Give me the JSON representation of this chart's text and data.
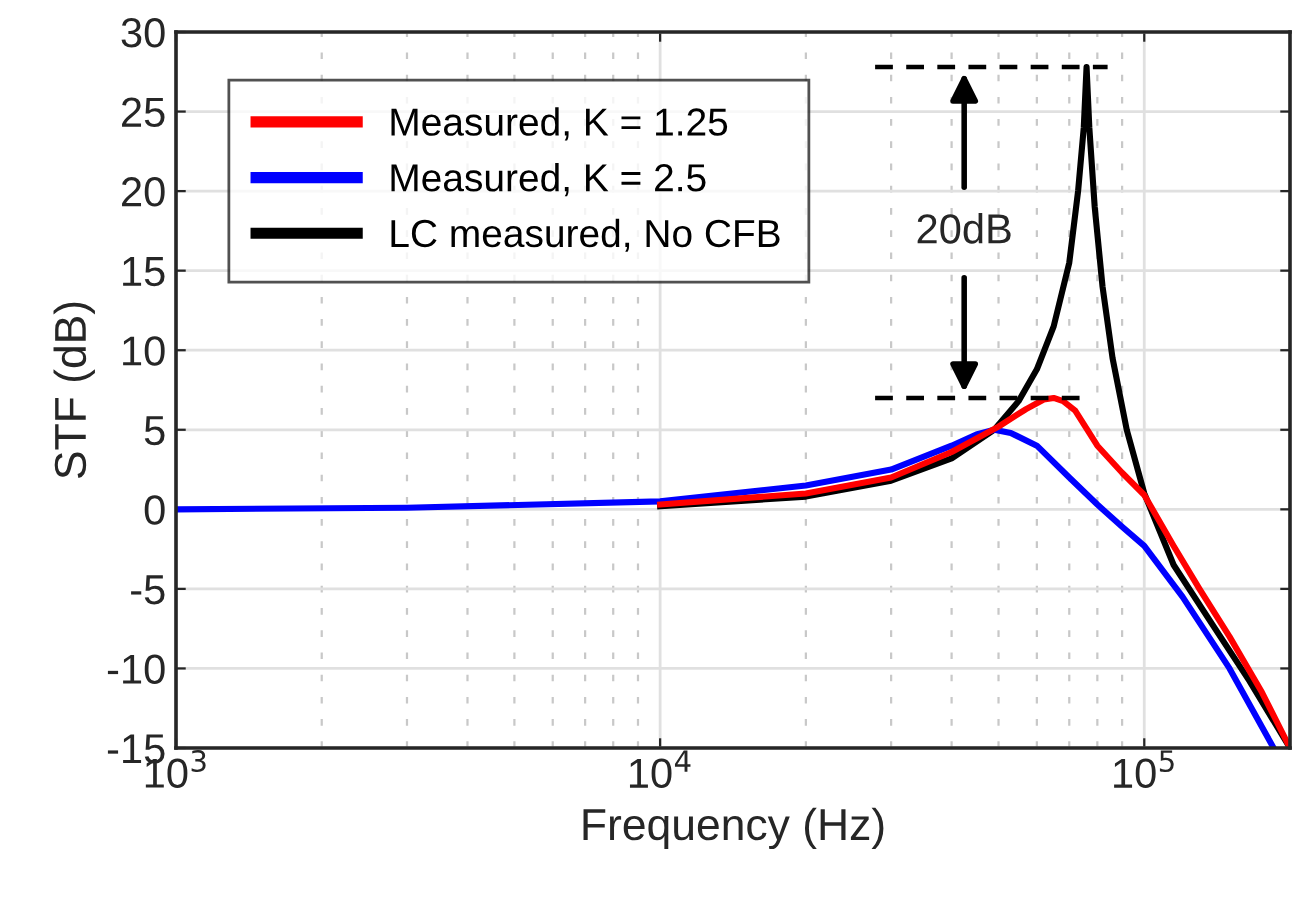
{
  "chart_data": {
    "type": "line",
    "xlabel": "Frequency (Hz)",
    "ylabel": "STF (dB)",
    "log": "x",
    "xlim": [
      1000,
      200000
    ],
    "ylim": [
      -15,
      30
    ],
    "xticks": [
      {
        "value": 1000,
        "label": "10$^{3}$"
      },
      {
        "value": 10000,
        "label": "10$^{4}$"
      },
      {
        "value": 100000,
        "label": "10$^{5}$"
      }
    ],
    "yticks": [
      -15,
      -10,
      -5,
      0,
      5,
      10,
      15,
      20,
      25,
      30
    ],
    "grid": true,
    "legend": "top left",
    "line_style": "solid",
    "marker": "none",
    "series": [
      {
        "name": "Measured, K = 1.25",
        "color": "#ff0000",
        "x": [
          10000,
          20000,
          30000,
          40000,
          50000,
          57000,
          62000,
          65000,
          68000,
          72000,
          80000,
          90000,
          100000,
          115000,
          130000,
          150000,
          175000,
          200000
        ],
        "values": [
          0.3,
          1,
          2,
          3.6,
          5.2,
          6.3,
          6.9,
          7,
          6.8,
          6.2,
          4,
          2.3,
          0.9,
          -2.3,
          -5,
          -8,
          -11.5,
          -15
        ]
      },
      {
        "name": "Measured, K = 2.5",
        "color": "#0000ff",
        "x": [
          1000,
          3000,
          10000,
          20000,
          30000,
          40000,
          45000,
          49000,
          53000,
          60000,
          70000,
          80000,
          90000,
          100000,
          120000,
          150000,
          185000
        ],
        "values": [
          0,
          0.1,
          0.5,
          1.5,
          2.5,
          4,
          4.7,
          5,
          4.8,
          4,
          2,
          0.3,
          -1.1,
          -2.3,
          -5.5,
          -10,
          -15
        ]
      },
      {
        "name": "LC measured, No CFB",
        "color": "#000000",
        "x": [
          10000,
          20000,
          30000,
          40000,
          49000,
          55000,
          60000,
          65000,
          70000,
          73000,
          75000,
          76000,
          77000,
          79000,
          82000,
          86000,
          92000,
          100000,
          115000,
          138000,
          165000,
          200000
        ],
        "values": [
          0.2,
          0.8,
          1.8,
          3.2,
          5,
          6.8,
          8.8,
          11.5,
          15.5,
          20,
          24,
          27.8,
          24,
          19,
          14,
          9.5,
          5,
          1,
          -3.5,
          -7.2,
          -10.8,
          -15
        ]
      },
      {
        "color": "#000000",
        "line_style": "dashed",
        "x": [
          27800,
          84000
        ],
        "values": [
          27.8,
          27.8
        ]
      },
      {
        "color": "#000000",
        "line_style": "dashed",
        "x": [
          27800,
          75000
        ],
        "values": [
          7,
          7
        ]
      }
    ],
    "annotations": [
      "20dB"
    ]
  }
}
